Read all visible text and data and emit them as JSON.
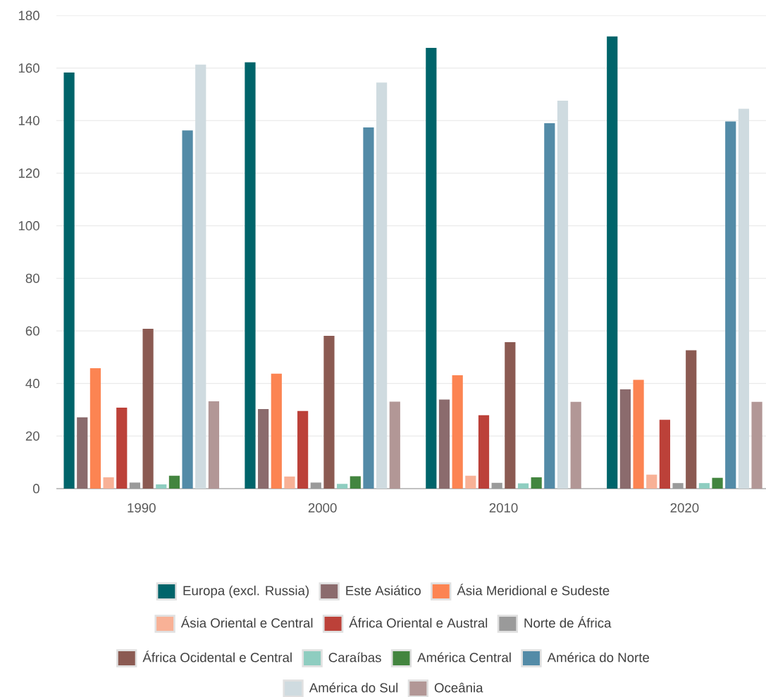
{
  "chart_data": {
    "type": "bar",
    "categories": [
      "1990",
      "2000",
      "2010",
      "2020"
    ],
    "series": [
      {
        "name": "Europa (excl. Russia)",
        "color": "#00646a",
        "values": [
          158.3,
          162.2,
          167.7,
          172.0
        ]
      },
      {
        "name": "Este Asiático",
        "color": "#8b6b6d",
        "values": [
          27.1,
          30.3,
          33.9,
          37.8
        ]
      },
      {
        "name": "Ásia Meridional e Sudeste",
        "color": "#fc8452",
        "values": [
          45.8,
          43.7,
          43.1,
          41.4
        ]
      },
      {
        "name": "Ásia Oriental e Central",
        "color": "#f8b196",
        "values": [
          4.3,
          4.6,
          4.9,
          5.3
        ]
      },
      {
        "name": "África Oriental e Austral",
        "color": "#bc4139",
        "values": [
          30.8,
          29.5,
          27.9,
          26.2
        ]
      },
      {
        "name": "Norte de África",
        "color": "#9a9a9a",
        "values": [
          2.3,
          2.3,
          2.2,
          2.1
        ]
      },
      {
        "name": "África Ocidental e Central",
        "color": "#8b5a52",
        "values": [
          60.8,
          58.1,
          55.7,
          52.6
        ]
      },
      {
        "name": "Caraíbas",
        "color": "#8ecdc0",
        "values": [
          1.6,
          1.8,
          2.0,
          2.1
        ]
      },
      {
        "name": "América Central",
        "color": "#43853f",
        "values": [
          4.9,
          4.7,
          4.3,
          4.1
        ]
      },
      {
        "name": "América do Norte",
        "color": "#538ba7",
        "values": [
          136.3,
          137.4,
          139.0,
          139.7
        ]
      },
      {
        "name": "América do Sul",
        "color": "#cfdbe0",
        "values": [
          161.3,
          154.5,
          147.6,
          144.5
        ]
      },
      {
        "name": "Oceânia",
        "color": "#b29796",
        "values": [
          33.2,
          33.1,
          33.0,
          33.0
        ]
      }
    ],
    "ylim": [
      0,
      180
    ],
    "yticks": [
      0,
      20,
      40,
      60,
      80,
      100,
      120,
      140,
      160,
      180
    ],
    "grid": "y",
    "legend": "bottom"
  }
}
